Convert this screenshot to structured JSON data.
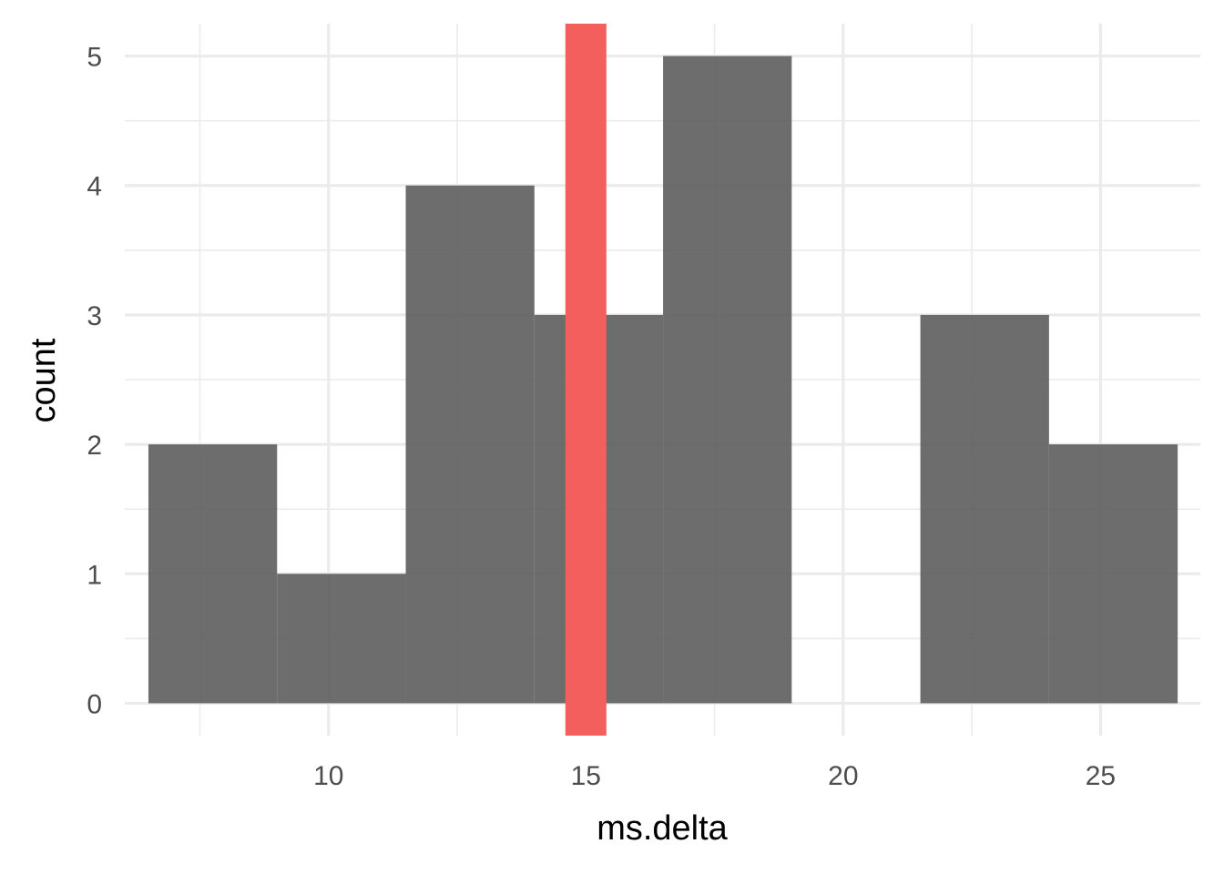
{
  "chart_data": {
    "type": "bar",
    "subtype": "histogram",
    "xlabel": "ms.delta",
    "ylabel": "count",
    "xlim": [
      6.04,
      26.94
    ],
    "ylim": [
      -0.25,
      5.25
    ],
    "x_ticks": [
      10,
      15,
      20,
      25
    ],
    "x_tick_labels": [
      "10",
      "15",
      "20",
      "25"
    ],
    "y_ticks": [
      0,
      1,
      2,
      3,
      4,
      5
    ],
    "y_tick_labels": [
      "0",
      "1",
      "2",
      "3",
      "4",
      "5"
    ],
    "bins": [
      {
        "x0": 6.5,
        "x1": 9.0,
        "count": 2
      },
      {
        "x0": 9.0,
        "x1": 11.5,
        "count": 1
      },
      {
        "x0": 11.5,
        "x1": 14.0,
        "count": 4
      },
      {
        "x0": 14.0,
        "x1": 16.5,
        "count": 3
      },
      {
        "x0": 16.5,
        "x1": 19.0,
        "count": 5
      },
      {
        "x0": 19.0,
        "x1": 21.5,
        "count": 0
      },
      {
        "x0": 21.5,
        "x1": 24.0,
        "count": 3
      },
      {
        "x0": 24.0,
        "x1": 26.5,
        "count": 2
      }
    ],
    "bar_color": "#595959",
    "bar_opacity": 0.88,
    "vline": {
      "x": 15.0,
      "color": "#f25f5c"
    },
    "grid": true,
    "legend": "none"
  }
}
